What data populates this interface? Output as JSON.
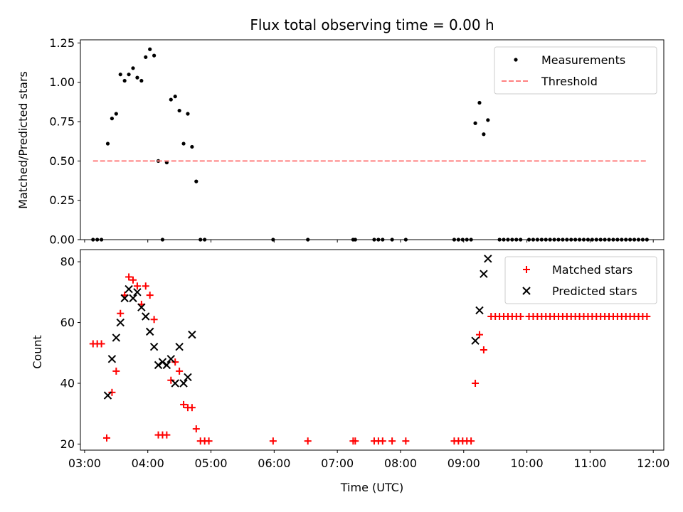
{
  "chart_data": [
    {
      "type": "scatter",
      "title": "Flux total observing time = 0.00 h",
      "xlabel": "",
      "ylabel": "Matched/Predicted stars",
      "xlim": [
        "02:56",
        "12:10"
      ],
      "ylim": [
        0,
        1.27
      ],
      "yticks": [
        {
          "v": 0,
          "label": "0.00"
        },
        {
          "v": 0.25,
          "label": "0.25"
        },
        {
          "v": 0.5,
          "label": "0.50"
        },
        {
          "v": 0.75,
          "label": "0.75"
        },
        {
          "v": 1.0,
          "label": "1.00"
        },
        {
          "v": 1.25,
          "label": "1.25"
        }
      ],
      "grid": false,
      "legend_position": "top-right",
      "legend": [
        "Measurements",
        "Threshold"
      ],
      "series": [
        {
          "name": "Measurements",
          "color": "#000000",
          "marker": "dot",
          "points": [
            [
              "03:08",
              0
            ],
            [
              "03:12",
              0
            ],
            [
              "03:16",
              0
            ],
            [
              "03:22",
              0.61
            ],
            [
              "03:26",
              0.77
            ],
            [
              "03:30",
              0.8
            ],
            [
              "03:34",
              1.05
            ],
            [
              "03:38",
              1.01
            ],
            [
              "03:42",
              1.05
            ],
            [
              "03:46",
              1.09
            ],
            [
              "03:50",
              1.03
            ],
            [
              "03:54",
              1.01
            ],
            [
              "03:58",
              1.16
            ],
            [
              "04:02",
              1.21
            ],
            [
              "04:06",
              1.17
            ],
            [
              "04:10",
              0.5
            ],
            [
              "04:14",
              0
            ],
            [
              "04:18",
              0.49
            ],
            [
              "04:22",
              0.89
            ],
            [
              "04:26",
              0.91
            ],
            [
              "04:30",
              0.82
            ],
            [
              "04:34",
              0.61
            ],
            [
              "04:38",
              0.8
            ],
            [
              "04:42",
              0.59
            ],
            [
              "04:46",
              0.37
            ],
            [
              "04:50",
              0
            ],
            [
              "04:54",
              0
            ],
            [
              "05:59",
              0
            ],
            [
              "06:32",
              0
            ],
            [
              "07:15",
              0
            ],
            [
              "07:17",
              0
            ],
            [
              "07:35",
              0
            ],
            [
              "07:39",
              0
            ],
            [
              "07:43",
              0
            ],
            [
              "07:52",
              0
            ],
            [
              "08:05",
              0
            ],
            [
              "08:51",
              0
            ],
            [
              "08:55",
              0
            ],
            [
              "08:59",
              0
            ],
            [
              "09:03",
              0
            ],
            [
              "09:07",
              0
            ],
            [
              "09:11",
              0.74
            ],
            [
              "09:15",
              0.87
            ],
            [
              "09:19",
              0.67
            ],
            [
              "09:23",
              0.76
            ],
            [
              "09:34",
              0
            ],
            [
              "09:38",
              0
            ],
            [
              "09:42",
              0
            ],
            [
              "09:46",
              0
            ],
            [
              "09:50",
              0
            ],
            [
              "09:54",
              0
            ],
            [
              "10:02",
              0
            ],
            [
              "10:06",
              0
            ],
            [
              "10:10",
              0
            ],
            [
              "10:14",
              0
            ],
            [
              "10:18",
              0
            ],
            [
              "10:22",
              0
            ],
            [
              "10:26",
              0
            ],
            [
              "10:30",
              0
            ],
            [
              "10:34",
              0
            ],
            [
              "10:38",
              0
            ],
            [
              "10:42",
              0
            ],
            [
              "10:46",
              0
            ],
            [
              "10:50",
              0
            ],
            [
              "10:54",
              0
            ],
            [
              "10:58",
              0
            ],
            [
              "11:02",
              0
            ],
            [
              "11:06",
              0
            ],
            [
              "11:10",
              0
            ],
            [
              "11:14",
              0
            ],
            [
              "11:18",
              0
            ],
            [
              "11:22",
              0
            ],
            [
              "11:26",
              0
            ],
            [
              "11:30",
              0
            ],
            [
              "11:34",
              0
            ],
            [
              "11:38",
              0
            ],
            [
              "11:42",
              0
            ],
            [
              "11:46",
              0
            ],
            [
              "11:50",
              0
            ],
            [
              "11:54",
              0
            ]
          ]
        },
        {
          "name": "Threshold",
          "color": "#ff8080",
          "style": "dashed",
          "points": [
            [
              "03:08",
              0.5
            ],
            [
              "11:54",
              0.5
            ]
          ]
        }
      ]
    },
    {
      "type": "scatter",
      "title": "",
      "xlabel": "Time (UTC)",
      "ylabel": "Count",
      "xlim": [
        "02:56",
        "12:10"
      ],
      "ylim": [
        18,
        84
      ],
      "yticks": [
        {
          "v": 20,
          "label": "20"
        },
        {
          "v": 40,
          "label": "40"
        },
        {
          "v": 60,
          "label": "60"
        },
        {
          "v": 80,
          "label": "80"
        }
      ],
      "xticks": [
        "03:00",
        "04:00",
        "05:00",
        "06:00",
        "07:00",
        "08:00",
        "09:00",
        "10:00",
        "11:00",
        "12:00"
      ],
      "grid": false,
      "legend_position": "top-right",
      "legend": [
        "Matched stars",
        "Predicted stars"
      ],
      "series": [
        {
          "name": "Matched stars",
          "color": "#ff0000",
          "marker": "plus",
          "points": [
            [
              "03:08",
              53
            ],
            [
              "03:12",
              53
            ],
            [
              "03:16",
              53
            ],
            [
              "03:21",
              22
            ],
            [
              "03:26",
              37
            ],
            [
              "03:30",
              44
            ],
            [
              "03:34",
              63
            ],
            [
              "03:38",
              69
            ],
            [
              "03:42",
              75
            ],
            [
              "03:46",
              74
            ],
            [
              "03:50",
              72
            ],
            [
              "03:54",
              66
            ],
            [
              "03:58",
              72
            ],
            [
              "04:02",
              69
            ],
            [
              "04:06",
              61
            ],
            [
              "04:10",
              23
            ],
            [
              "04:14",
              23
            ],
            [
              "04:18",
              23
            ],
            [
              "04:22",
              41
            ],
            [
              "04:26",
              47
            ],
            [
              "04:30",
              44
            ],
            [
              "04:34",
              33
            ],
            [
              "04:38",
              32
            ],
            [
              "04:42",
              32
            ],
            [
              "04:46",
              25
            ],
            [
              "04:50",
              21
            ],
            [
              "04:54",
              21
            ],
            [
              "04:58",
              21
            ],
            [
              "05:59",
              21
            ],
            [
              "06:32",
              21
            ],
            [
              "07:15",
              21
            ],
            [
              "07:17",
              21
            ],
            [
              "07:35",
              21
            ],
            [
              "07:39",
              21
            ],
            [
              "07:43",
              21
            ],
            [
              "07:52",
              21
            ],
            [
              "08:05",
              21
            ],
            [
              "08:51",
              21
            ],
            [
              "08:55",
              21
            ],
            [
              "08:59",
              21
            ],
            [
              "09:03",
              21
            ],
            [
              "09:07",
              21
            ],
            [
              "09:11",
              40
            ],
            [
              "09:15",
              56
            ],
            [
              "09:19",
              51
            ],
            [
              "09:26",
              62
            ],
            [
              "09:30",
              62
            ],
            [
              "09:34",
              62
            ],
            [
              "09:38",
              62
            ],
            [
              "09:42",
              62
            ],
            [
              "09:46",
              62
            ],
            [
              "09:50",
              62
            ],
            [
              "09:54",
              62
            ],
            [
              "10:02",
              62
            ],
            [
              "10:06",
              62
            ],
            [
              "10:10",
              62
            ],
            [
              "10:14",
              62
            ],
            [
              "10:18",
              62
            ],
            [
              "10:22",
              62
            ],
            [
              "10:26",
              62
            ],
            [
              "10:30",
              62
            ],
            [
              "10:34",
              62
            ],
            [
              "10:38",
              62
            ],
            [
              "10:42",
              62
            ],
            [
              "10:46",
              62
            ],
            [
              "10:50",
              62
            ],
            [
              "10:54",
              62
            ],
            [
              "10:58",
              62
            ],
            [
              "11:02",
              62
            ],
            [
              "11:06",
              62
            ],
            [
              "11:10",
              62
            ],
            [
              "11:14",
              62
            ],
            [
              "11:18",
              62
            ],
            [
              "11:22",
              62
            ],
            [
              "11:26",
              62
            ],
            [
              "11:30",
              62
            ],
            [
              "11:34",
              62
            ],
            [
              "11:38",
              62
            ],
            [
              "11:42",
              62
            ],
            [
              "11:46",
              62
            ],
            [
              "11:50",
              62
            ],
            [
              "11:54",
              62
            ]
          ]
        },
        {
          "name": "Predicted stars",
          "color": "#000000",
          "marker": "x",
          "points": [
            [
              "03:22",
              36
            ],
            [
              "03:26",
              48
            ],
            [
              "03:30",
              55
            ],
            [
              "03:34",
              60
            ],
            [
              "03:38",
              68
            ],
            [
              "03:42",
              71
            ],
            [
              "03:46",
              68
            ],
            [
              "03:50",
              70
            ],
            [
              "03:54",
              65
            ],
            [
              "03:58",
              62
            ],
            [
              "04:02",
              57
            ],
            [
              "04:06",
              52
            ],
            [
              "04:10",
              46
            ],
            [
              "04:14",
              47
            ],
            [
              "04:18",
              46
            ],
            [
              "04:22",
              48
            ],
            [
              "04:26",
              40
            ],
            [
              "04:30",
              52
            ],
            [
              "04:34",
              40
            ],
            [
              "04:38",
              42
            ],
            [
              "04:42",
              56
            ],
            [
              "09:11",
              54
            ],
            [
              "09:15",
              64
            ],
            [
              "09:19",
              76
            ],
            [
              "09:23",
              81
            ]
          ]
        }
      ]
    }
  ]
}
